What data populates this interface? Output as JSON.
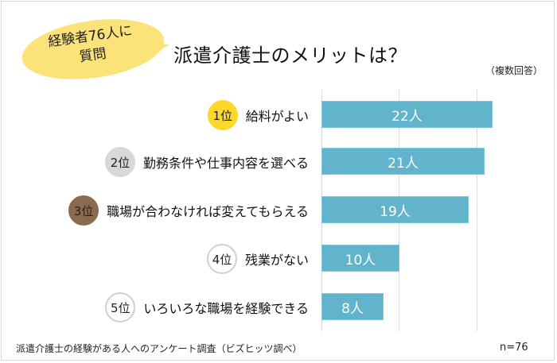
{
  "bubble": {
    "line1": "経験者76人に",
    "line2": "質問"
  },
  "title": "派遣介護士のメリットは？",
  "note": "（複数回答）",
  "footer": {
    "source": "派遣介護士の経験がある人へのアンケート調査（ビズヒッツ調べ）",
    "n": "n=76"
  },
  "rows": [
    {
      "rank": "1位",
      "label": "給料がよい",
      "value_label": "22人",
      "badge_bg": "#fcd82a",
      "badge_border": "#fcd82a"
    },
    {
      "rank": "2位",
      "label": "勤務条件や仕事内容を選べる",
      "value_label": "21人",
      "badge_bg": "#d8d8d8",
      "badge_border": "#d8d8d8"
    },
    {
      "rank": "3位",
      "label": "職場が合わなければ変えてもらえる",
      "value_label": "19人",
      "badge_bg": "#8c6a4f",
      "badge_border": "#8c6a4f"
    },
    {
      "rank": "4位",
      "label": "残業がない",
      "value_label": "10人",
      "badge_bg": "#ffffff",
      "badge_border": "#d0d0d0"
    },
    {
      "rank": "5位",
      "label": "いろいろな職場を経験できる",
      "value_label": "8人",
      "badge_bg": "#ffffff",
      "badge_border": "#d0d0d0"
    }
  ],
  "colors": {
    "bar": "#62b3cc",
    "bubble": "#fbe37a",
    "gridline": "#dcdcdc"
  },
  "chart_data": {
    "type": "bar",
    "orientation": "horizontal",
    "title": "派遣介護士のメリットは？",
    "subtitle": "（複数回答）",
    "categories": [
      "給料がよい",
      "勤務条件や仕事内容を選べる",
      "職場が合わなければ変えてもらえる",
      "残業がない",
      "いろいろな職場を経験できる"
    ],
    "ranks": [
      "1位",
      "2位",
      "3位",
      "4位",
      "5位"
    ],
    "values": [
      22,
      21,
      19,
      10,
      8
    ],
    "unit": "人",
    "xlim": [
      0,
      30
    ],
    "grid": true,
    "annotations": [
      "経験者76人に質問",
      "n=76",
      "派遣介護士の経験がある人へのアンケート調査（ビズヒッツ調べ）"
    ]
  }
}
